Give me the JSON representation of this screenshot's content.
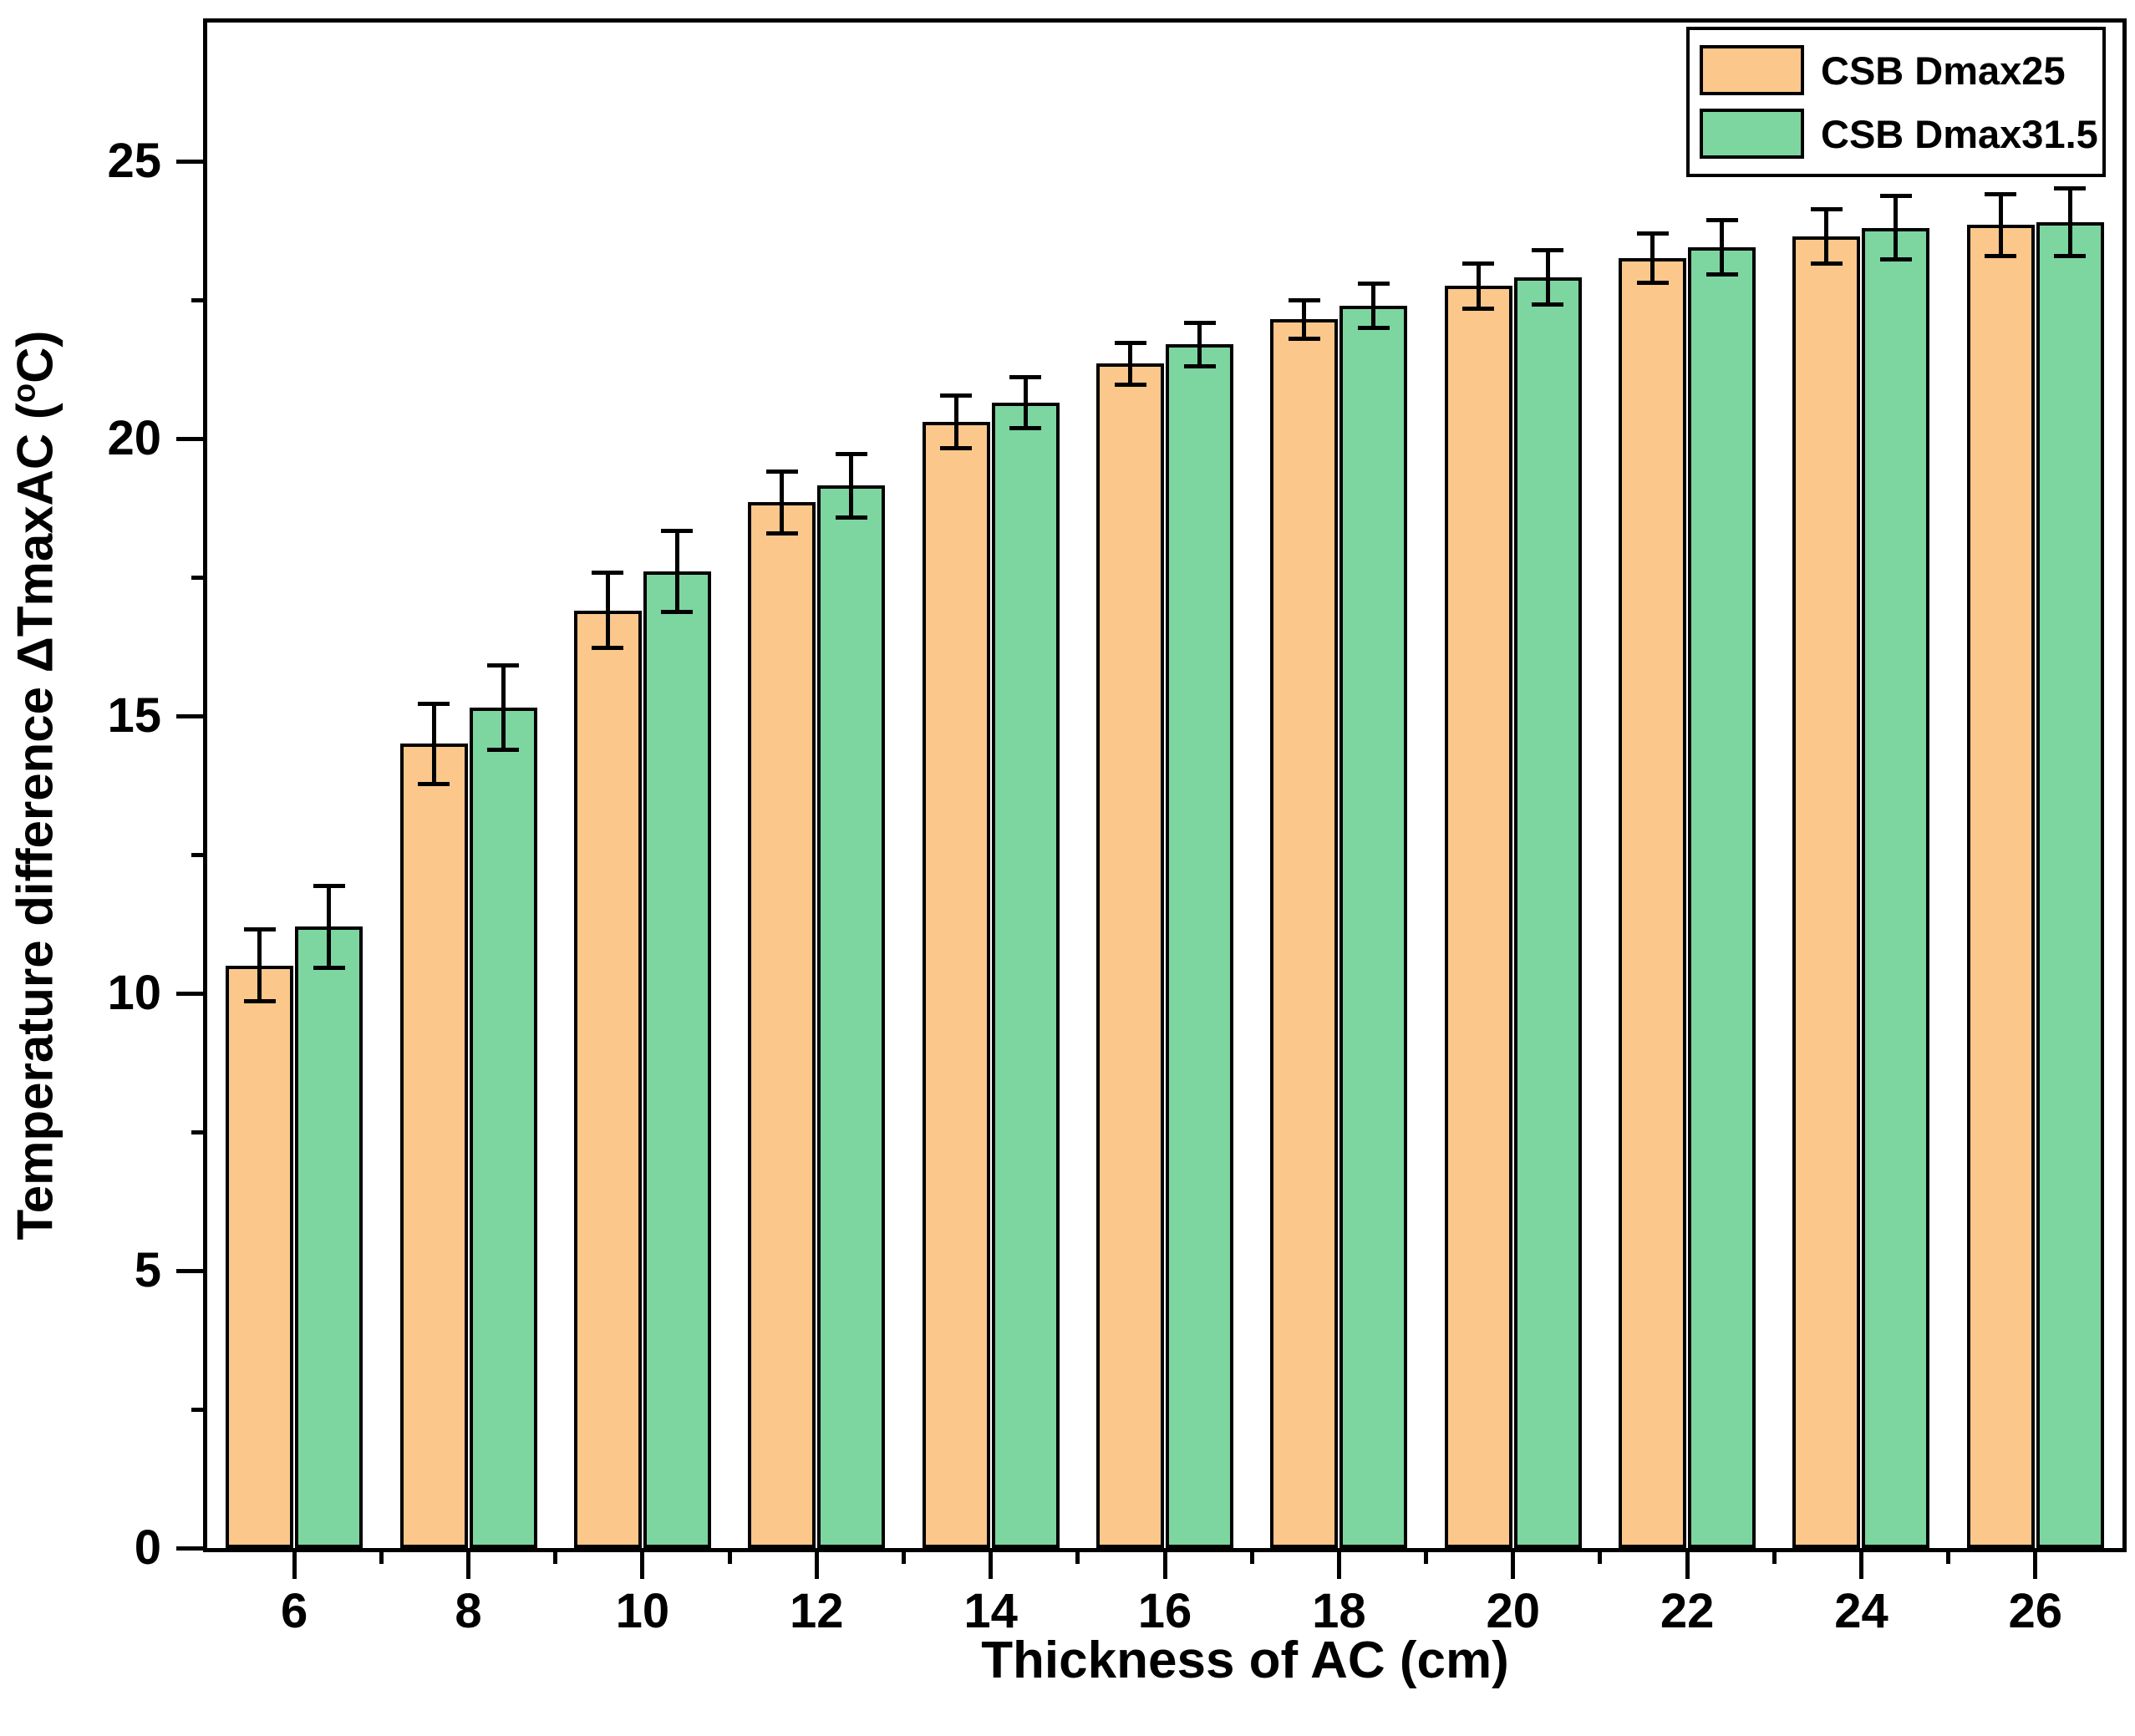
{
  "chart_data": {
    "type": "bar",
    "title": "",
    "xlabel": "Thickness of AC (cm)",
    "ylabel": "Temperature difference ΔTmaxAC (°C)",
    "ylabel_parts": {
      "prefix": "Temperature difference ΔTmaxAC (",
      "sup": "o",
      "suffix": "C)"
    },
    "categories": [
      "6",
      "8",
      "10",
      "12",
      "14",
      "16",
      "18",
      "20",
      "22",
      "24",
      "26"
    ],
    "series": [
      {
        "name": "CSB Dmax25",
        "color": "#FBC78B",
        "values": [
          10.5,
          14.5,
          16.9,
          18.85,
          20.3,
          21.35,
          22.15,
          22.75,
          23.25,
          23.65,
          23.85
        ],
        "errors": [
          0.65,
          0.72,
          0.68,
          0.56,
          0.47,
          0.38,
          0.35,
          0.41,
          0.44,
          0.49,
          0.56
        ]
      },
      {
        "name": "CSB Dmax31.5",
        "color": "#7DD5A0",
        "values": [
          11.2,
          15.15,
          17.6,
          19.15,
          20.65,
          21.7,
          22.4,
          22.9,
          23.45,
          23.8,
          23.9
        ],
        "errors": [
          0.74,
          0.76,
          0.73,
          0.57,
          0.46,
          0.39,
          0.4,
          0.49,
          0.49,
          0.57,
          0.61
        ]
      }
    ],
    "y_ticks": [
      0,
      5,
      10,
      15,
      20,
      25
    ],
    "y_minor_ticks": [
      2.5,
      7.5,
      12.5,
      17.5,
      22.5
    ],
    "ylim": [
      0,
      27.5
    ],
    "grid": false,
    "legend_position": "top-right",
    "bar_border_color": "#000000",
    "axis_color": "#000000",
    "error_bar_color": "#000000"
  }
}
